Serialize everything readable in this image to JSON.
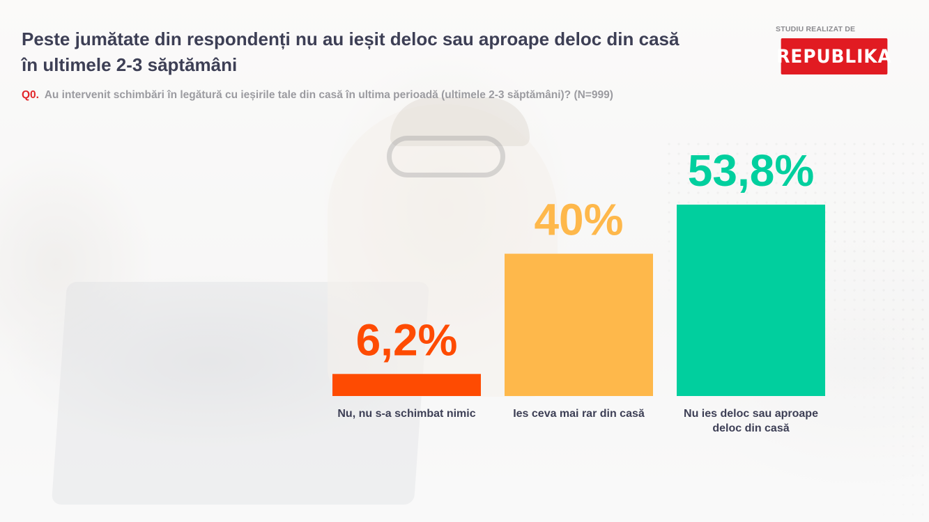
{
  "header": {
    "title": "Peste jumătate din respondenți nu au ieșit deloc sau aproape deloc din casă în ultimele 2-3 săptămâni",
    "question_code": "Q0.",
    "question_text": "Au intervenit schimbări în legătură cu ieșirile tale din casă în ultima perioadă (ultimele 2-3 săptămâni)? (N=999)"
  },
  "brand": {
    "caption": "STUDIU REALIZAT DE",
    "logo": "REPUBLIKA",
    "logo_color": "#e11b22"
  },
  "chart_data": {
    "type": "bar",
    "categories": [
      [
        "Nu, nu s-a schimbat nimic"
      ],
      [
        "Ies ceva mai rar din casă"
      ],
      [
        "Nu ies deloc sau aproape",
        "deloc din casă"
      ]
    ],
    "values": [
      6.2,
      40,
      53.8
    ],
    "value_labels": [
      "6,2%",
      "40%",
      "53,8%"
    ],
    "colors": [
      "#fe4b02",
      "#feb84b",
      "#01cf9e"
    ],
    "ylim": [
      0,
      53.8
    ],
    "grid": false,
    "legend": "none"
  }
}
